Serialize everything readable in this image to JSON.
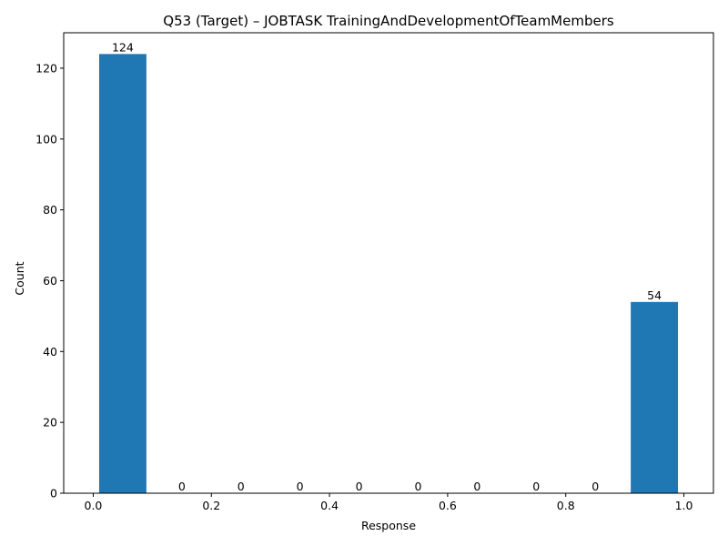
{
  "chart_data": {
    "type": "bar",
    "title": "Q53 (Target) – JOBTASK TrainingAndDevelopmentOfTeamMembers",
    "xlabel": "Response",
    "ylabel": "Count",
    "bins": [
      {
        "start": 0.0,
        "end": 0.1,
        "count": 124
      },
      {
        "start": 0.1,
        "end": 0.2,
        "count": 0
      },
      {
        "start": 0.2,
        "end": 0.3,
        "count": 0
      },
      {
        "start": 0.3,
        "end": 0.4,
        "count": 0
      },
      {
        "start": 0.4,
        "end": 0.5,
        "count": 0
      },
      {
        "start": 0.5,
        "end": 0.6,
        "count": 0
      },
      {
        "start": 0.6,
        "end": 0.7,
        "count": 0
      },
      {
        "start": 0.7,
        "end": 0.8,
        "count": 0
      },
      {
        "start": 0.8,
        "end": 0.9,
        "count": 0
      },
      {
        "start": 0.9,
        "end": 1.0,
        "count": 54
      }
    ],
    "bar_labels": [
      "124",
      "0",
      "0",
      "0",
      "0",
      "0",
      "0",
      "0",
      "0",
      "54"
    ],
    "x_ticks": [
      "0.0",
      "0.2",
      "0.4",
      "0.6",
      "0.8",
      "1.0"
    ],
    "y_ticks": [
      "0",
      "20",
      "40",
      "60",
      "80",
      "100",
      "120"
    ],
    "xlim": [
      -0.05,
      1.05
    ],
    "ylim": [
      0,
      130
    ],
    "bar_color": "#1f77b4",
    "grid": false,
    "legend": false
  }
}
